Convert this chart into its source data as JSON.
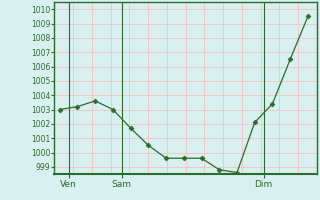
{
  "x_values": [
    0,
    1,
    2,
    3,
    4,
    5,
    6,
    7,
    8,
    9,
    10,
    11,
    12,
    13,
    14
  ],
  "y_values": [
    1003.0,
    1003.2,
    1003.6,
    1003.0,
    1001.7,
    1000.5,
    999.6,
    999.6,
    999.6,
    998.8,
    998.6,
    1002.1,
    1003.4,
    1006.5,
    1009.5
  ],
  "x_tick_labels": [
    "Ven",
    "Sam",
    "Dim"
  ],
  "x_tick_positions": [
    0.5,
    3.5,
    11.5
  ],
  "x_vline_positions": [
    0.5,
    3.5,
    11.5
  ],
  "ylim": [
    998.5,
    1010.5
  ],
  "yticks": [
    999,
    1000,
    1001,
    1002,
    1003,
    1004,
    1005,
    1006,
    1007,
    1008,
    1009,
    1010
  ],
  "line_color": "#2d6a2d",
  "marker": "D",
  "marker_size": 2.5,
  "bg_color": "#d8f0f0",
  "grid_color_h": "#f0c8c8",
  "grid_color_v": "#f0c8c8",
  "axis_color": "#2d6a2d",
  "tick_label_color": "#2d6a2d",
  "vline_color": "#2d6a2d",
  "xlim": [
    -0.3,
    14.5
  ]
}
